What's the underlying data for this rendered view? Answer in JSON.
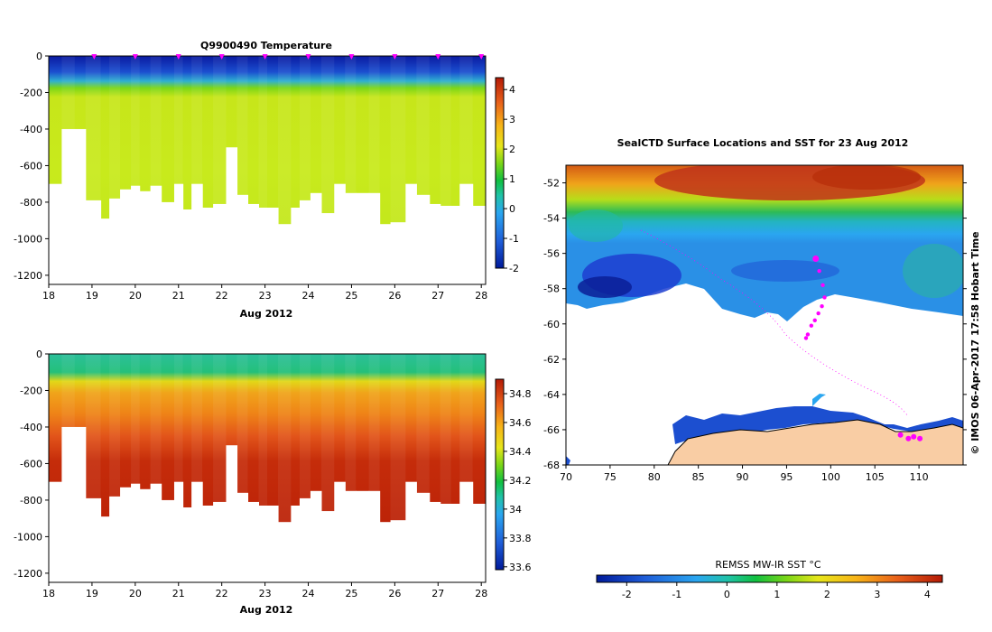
{
  "chart_data": [
    {
      "type": "heatmap",
      "title": "Q9900490  Temperature",
      "xlabel": "Aug 2012",
      "xlim": [
        18,
        28.1
      ],
      "ylim": [
        -1250,
        0
      ],
      "x_ticks": [
        "18",
        "19",
        "20",
        "21",
        "22",
        "23",
        "24",
        "25",
        "26",
        "27",
        "28"
      ],
      "y_ticks": [
        "0",
        "-200",
        "-400",
        "-600",
        "-800",
        "-1000",
        "-1200"
      ],
      "profile_markers_days": [
        19.05,
        20.0,
        21.0,
        22.0,
        23.0,
        24.0,
        25.0,
        26.0,
        27.0,
        28.0
      ],
      "profiles_x": [
        18.0,
        18.3,
        18.6,
        18.85,
        19.2,
        19.4,
        19.65,
        19.9,
        20.1,
        20.35,
        20.6,
        20.9,
        21.1,
        21.3,
        21.55,
        21.8,
        22.1,
        22.35,
        22.6,
        22.85,
        23.05,
        23.3,
        23.6,
        23.8,
        24.05,
        24.3,
        24.6,
        24.85,
        25.1,
        25.4,
        25.65,
        25.9,
        26.25,
        26.5,
        26.8,
        27.05,
        27.3,
        27.5,
        27.8,
        28.1
      ],
      "profile_depths": [
        -700,
        -400,
        -400,
        -790,
        -890,
        -780,
        -730,
        -710,
        -740,
        -710,
        -800,
        -700,
        -840,
        -700,
        -830,
        -810,
        -500,
        -760,
        -810,
        -830,
        -830,
        -920,
        -830,
        -790,
        -750,
        -860,
        -700,
        -750,
        -750,
        -750,
        -920,
        -910,
        -700,
        -760,
        -810,
        -820,
        -820,
        -700,
        -820,
        -820
      ],
      "colorbar": {
        "min": -2,
        "max": 4.4,
        "ticks": [
          "4",
          "3",
          "2",
          "1",
          "0",
          "-1",
          "-2"
        ]
      }
    },
    {
      "type": "heatmap",
      "title": "",
      "xlabel": "Aug 2012",
      "xlim": [
        18,
        28.1
      ],
      "ylim": [
        -1250,
        0
      ],
      "x_ticks": [
        "18",
        "19",
        "20",
        "21",
        "22",
        "23",
        "24",
        "25",
        "26",
        "27",
        "28"
      ],
      "y_ticks": [
        "0",
        "-200",
        "-400",
        "-600",
        "-800",
        "-1000",
        "-1200"
      ],
      "colorbar": {
        "min": 33.58,
        "max": 34.9,
        "ticks": [
          "34.8",
          "34.6",
          "34.4",
          "34.2",
          "34",
          "33.8",
          "33.6"
        ]
      }
    },
    {
      "type": "heatmap",
      "title": "SealCTD Surface Locations and SST for 23 Aug 2012",
      "xlim": [
        70,
        115
      ],
      "ylim": [
        -68,
        -51
      ],
      "x_ticks": [
        "70",
        "75",
        "80",
        "85",
        "90",
        "95",
        "100",
        "105",
        "110"
      ],
      "y_ticks": [
        "-52",
        "-54",
        "-56",
        "-58",
        "-60",
        "-62",
        "-64",
        "-66",
        "-68"
      ],
      "track_points": [
        [
          98.3,
          -56.3
        ],
        [
          98.7,
          -57.0
        ],
        [
          99.1,
          -57.8
        ],
        [
          99.3,
          -58.5
        ],
        [
          99.0,
          -59.0
        ],
        [
          98.6,
          -59.4
        ],
        [
          98.2,
          -59.8
        ],
        [
          97.8,
          -60.1
        ],
        [
          97.4,
          -60.6
        ],
        [
          97.2,
          -60.8
        ]
      ],
      "coast_points": [
        [
          107.9,
          -66.3
        ],
        [
          108.8,
          -66.5
        ],
        [
          109.4,
          -66.4
        ],
        [
          110.1,
          -66.5
        ]
      ],
      "colorbar": {
        "label": "REMSS MW-IR SST °C",
        "min": -2.6,
        "max": 4.3,
        "ticks": [
          "-2",
          "-1",
          "0",
          "1",
          "2",
          "3",
          "4"
        ]
      }
    }
  ],
  "credit": "© IMOS 06-Apr-2017 17:58 Hobart Time",
  "colors": {
    "marker": "#ff00ff",
    "land": "#f9cda4"
  }
}
